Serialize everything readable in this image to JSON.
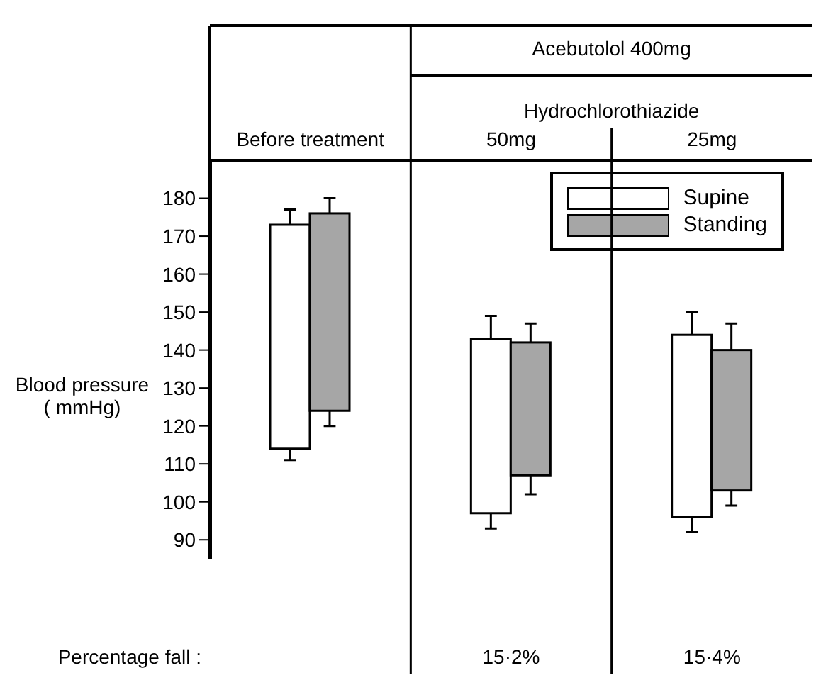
{
  "chart_data": {
    "type": "bar",
    "categories": [
      "Before treatment",
      "50mg",
      "25mg"
    ],
    "ylabel": "Blood pressure ( mmHg)",
    "series": [
      {
        "name": "Supine",
        "color": "#ffffff",
        "base": [
          114,
          97,
          96
        ],
        "values": [
          59,
          46,
          48
        ],
        "errors": [
          [
            111,
            177
          ],
          [
            93,
            149
          ],
          [
            92,
            150
          ]
        ]
      },
      {
        "name": "Standing",
        "color": "#a6a6a6",
        "base": [
          124,
          107,
          103
        ],
        "values": [
          52,
          35,
          37
        ],
        "errors": [
          [
            120,
            180
          ],
          [
            102,
            147
          ],
          [
            99,
            147
          ]
        ]
      }
    ],
    "ylim": [
      85,
      190
    ],
    "yticks": [
      90,
      100,
      110,
      120,
      130,
      140,
      150,
      160,
      170,
      180
    ],
    "legend": "top right",
    "annotations": [
      "Acebutolol 400mg",
      "Hydrochlorothiazide",
      "Percentage fall :",
      "15·2%",
      "15·4%"
    ]
  }
}
